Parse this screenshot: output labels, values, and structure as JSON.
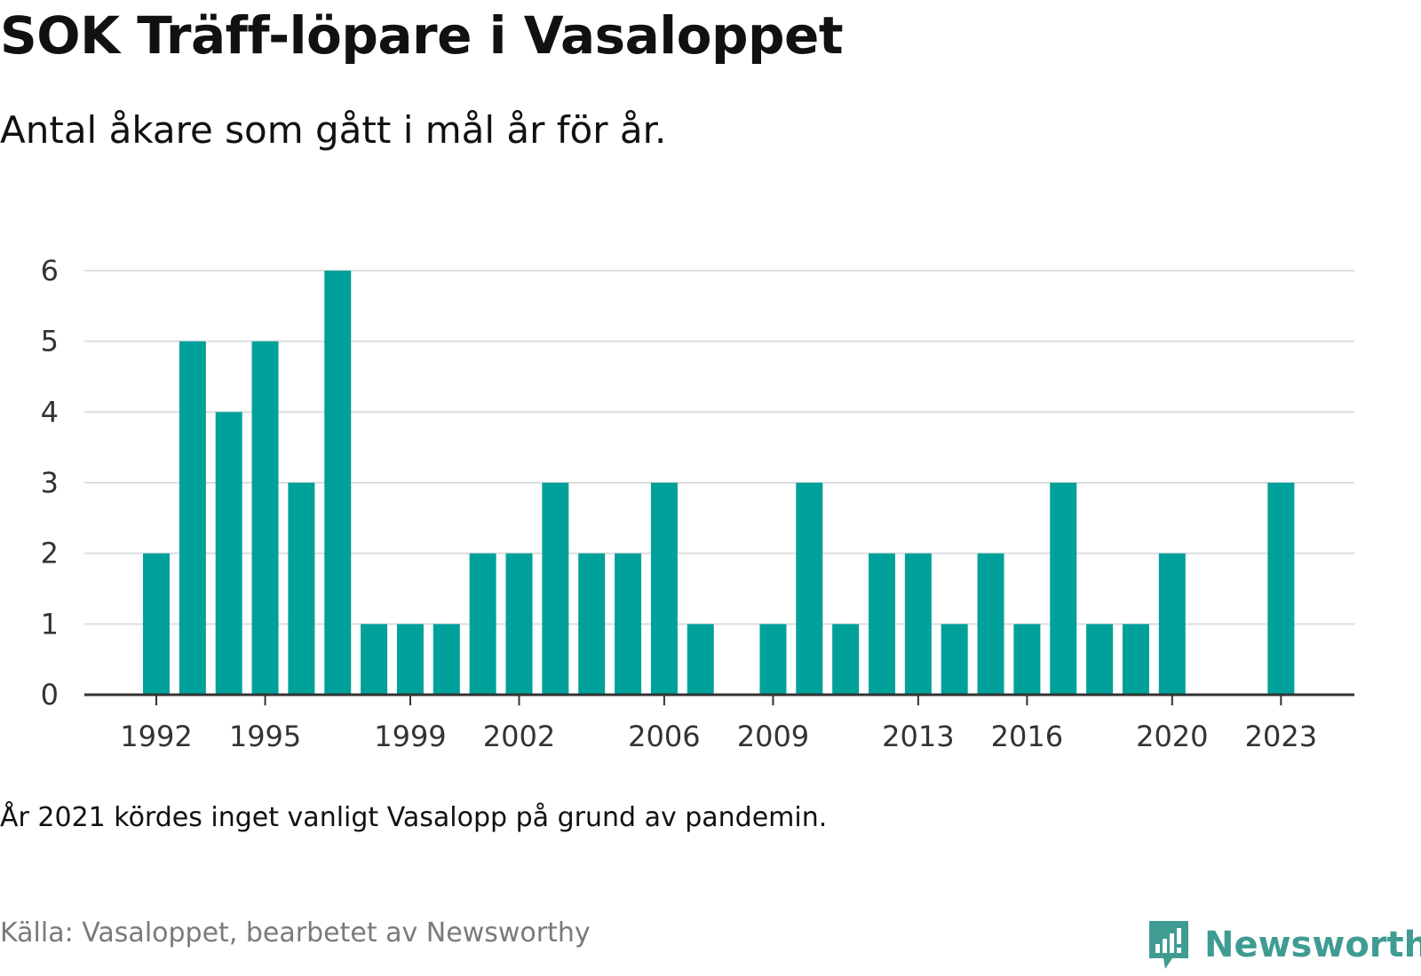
{
  "title": "SOK Träff-löpare i Vasaloppet",
  "subtitle": "Antal åkare som gått i mål år för år.",
  "note": "År 2021 kördes inget vanligt Vasalopp på grund av pandemin.",
  "source": "Källa: Vasaloppet, bearbetet av Newsworthy",
  "brand": {
    "name": "Newsworthy",
    "color": "#3f9c93",
    "icon": "newsworthy-logo-icon"
  },
  "colors": {
    "bar": "#00a19a",
    "grid": "#dddddd",
    "axis": "#333333"
  },
  "chart_data": {
    "type": "bar",
    "categories": [
      1992,
      1993,
      1994,
      1995,
      1996,
      1997,
      1998,
      1999,
      2000,
      2001,
      2002,
      2003,
      2004,
      2005,
      2006,
      2007,
      2008,
      2009,
      2010,
      2011,
      2012,
      2013,
      2014,
      2015,
      2016,
      2017,
      2018,
      2019,
      2020,
      2021,
      2022,
      2023
    ],
    "values": [
      2,
      5,
      4,
      5,
      3,
      6,
      1,
      1,
      1,
      2,
      2,
      3,
      2,
      2,
      3,
      1,
      0,
      1,
      3,
      1,
      2,
      2,
      1,
      2,
      1,
      3,
      1,
      1,
      2,
      0,
      0,
      3
    ],
    "x_tick_labels": [
      "1992",
      "1995",
      "1999",
      "2002",
      "2006",
      "2009",
      "2013",
      "2016",
      "2020",
      "2023"
    ],
    "y_ticks": [
      0,
      1,
      2,
      3,
      4,
      5,
      6
    ],
    "ylim": [
      0,
      6
    ],
    "grid": true,
    "legend": "none"
  }
}
